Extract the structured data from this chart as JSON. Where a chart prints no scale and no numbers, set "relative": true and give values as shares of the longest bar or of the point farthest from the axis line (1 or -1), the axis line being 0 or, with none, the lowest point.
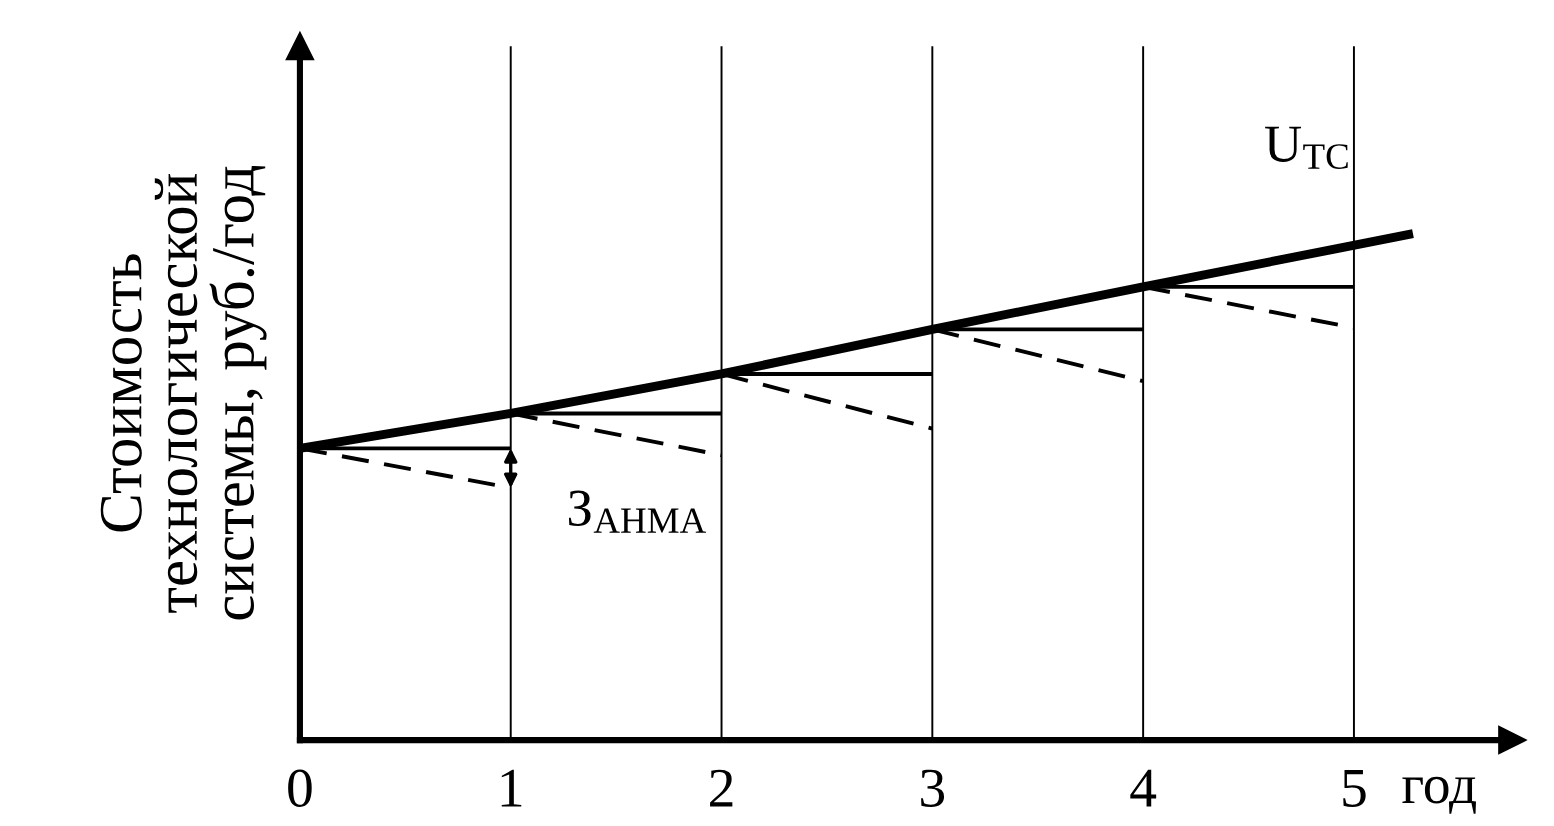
{
  "chart_data": {
    "type": "line",
    "relative": true,
    "xlabel": "год",
    "ylabel": "Стоимость\nтехнологической\nсистемы, руб./год",
    "xlim": [
      0,
      5.75
    ],
    "xticks": [
      0,
      1,
      2,
      3,
      4,
      5
    ],
    "grid": "x",
    "legend": false,
    "annotations": [
      "З$_{АНМА}$"
    ],
    "series": [
      {
        "name": "U$_{TC}$",
        "color": "#000000",
        "line_style": "solid",
        "x": [
          0,
          1,
          2,
          3,
          4,
          5.28
        ],
        "values": [
          0.576,
          0.645,
          0.723,
          0.811,
          0.895,
          1.0
        ]
      },
      {
        "color": "#000000",
        "line_style": "solid",
        "x": [
          0,
          1
        ],
        "values": [
          0.576,
          0.576
        ]
      },
      {
        "color": "#000000",
        "line_style": "solid",
        "x": [
          1,
          2
        ],
        "values": [
          0.645,
          0.645
        ]
      },
      {
        "color": "#000000",
        "line_style": "solid",
        "x": [
          2,
          3
        ],
        "values": [
          0.723,
          0.723
        ]
      },
      {
        "color": "#000000",
        "line_style": "solid",
        "x": [
          3,
          4
        ],
        "values": [
          0.811,
          0.811
        ]
      },
      {
        "color": "#000000",
        "line_style": "solid",
        "x": [
          4,
          5
        ],
        "values": [
          0.895,
          0.895
        ]
      },
      {
        "color": "#000000",
        "line_style": "dashed",
        "x": [
          0,
          1
        ],
        "values": [
          0.576,
          0.498
        ]
      },
      {
        "color": "#000000",
        "line_style": "dashed",
        "x": [
          1,
          2
        ],
        "values": [
          0.645,
          0.5625
        ]
      },
      {
        "color": "#000000",
        "line_style": "dashed",
        "x": [
          2,
          3
        ],
        "values": [
          0.723,
          0.615
        ]
      },
      {
        "color": "#000000",
        "line_style": "dashed",
        "x": [
          3,
          4
        ],
        "values": [
          0.811,
          0.709
        ]
      },
      {
        "color": "#000000",
        "line_style": "dashed",
        "x": [
          4,
          5
        ],
        "values": [
          0.895,
          0.814
        ]
      }
    ]
  }
}
